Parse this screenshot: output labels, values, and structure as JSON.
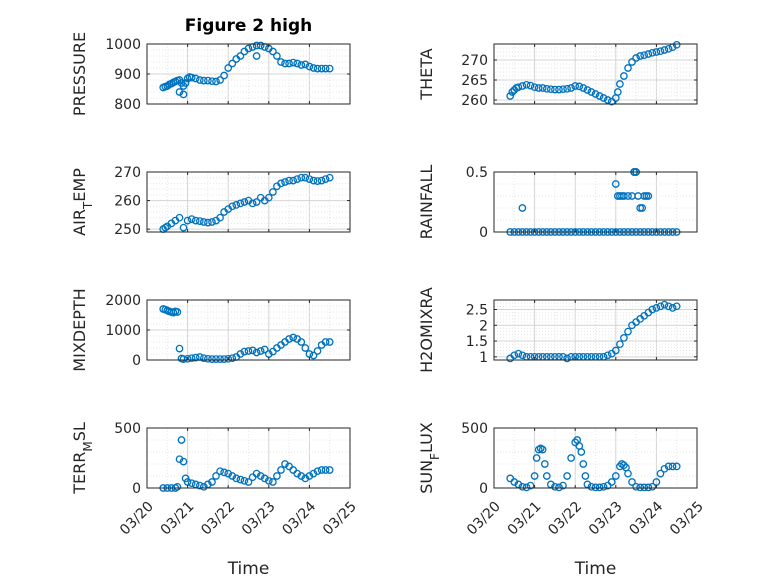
{
  "figure": {
    "title": "Figure 2 high",
    "xlabel": "Time",
    "xtick_labels": [
      "03/20",
      "03/21",
      "03/22",
      "03/23",
      "03/24",
      "03/25"
    ],
    "marker_color": "#0072BD"
  },
  "chart_data": [
    {
      "type": "scatter",
      "title": "Figure 2 high",
      "ylabel": "PRESSURE",
      "xlabel": "",
      "xlim": [
        0,
        5
      ],
      "ylim": [
        800,
        1000
      ],
      "yticks": [
        800,
        900,
        1000
      ],
      "ytick_labels": [
        "800",
        "900",
        "1000"
      ],
      "grid": true,
      "x": [
        0.4,
        0.45,
        0.5,
        0.55,
        0.6,
        0.65,
        0.7,
        0.75,
        0.8,
        0.85,
        0.9,
        0.95,
        1.0,
        1.05,
        1.1,
        1.2,
        1.3,
        1.4,
        1.5,
        1.6,
        1.7,
        1.8,
        1.9,
        2.0,
        2.1,
        2.2,
        2.3,
        2.4,
        2.5,
        2.6,
        2.7,
        2.8,
        2.9,
        3.0,
        3.1,
        3.2,
        3.3,
        3.4,
        3.5,
        3.6,
        3.7,
        3.8,
        3.9,
        4.0,
        4.1,
        4.2,
        4.3,
        4.4,
        4.5,
        0.8,
        0.9,
        2.7
      ],
      "y": [
        855,
        858,
        860,
        865,
        868,
        872,
        875,
        878,
        880,
        870,
        860,
        870,
        885,
        890,
        888,
        885,
        880,
        878,
        878,
        876,
        875,
        880,
        895,
        920,
        935,
        950,
        960,
        975,
        985,
        990,
        995,
        995,
        990,
        985,
        975,
        960,
        940,
        935,
        935,
        938,
        935,
        930,
        932,
        925,
        920,
        918,
        918,
        918,
        918,
        840,
        832,
        960
      ]
    },
    {
      "type": "scatter",
      "ylabel": "THETA",
      "xlabel": "",
      "xlim": [
        0,
        5
      ],
      "ylim": [
        259,
        274
      ],
      "yticks": [
        260,
        265,
        270
      ],
      "ytick_labels": [
        "260",
        "265",
        "270"
      ],
      "grid": true,
      "x": [
        0.4,
        0.45,
        0.5,
        0.55,
        0.6,
        0.7,
        0.8,
        0.9,
        1.0,
        1.1,
        1.2,
        1.3,
        1.4,
        1.5,
        1.6,
        1.7,
        1.8,
        1.9,
        2.0,
        2.1,
        2.2,
        2.3,
        2.4,
        2.5,
        2.6,
        2.7,
        2.8,
        2.9,
        3.0,
        3.05,
        3.1,
        3.2,
        3.3,
        3.4,
        3.5,
        3.6,
        3.7,
        3.8,
        3.9,
        4.0,
        4.1,
        4.2,
        4.3,
        4.4,
        4.5
      ],
      "y": [
        261,
        262,
        262.5,
        263,
        263.2,
        263.5,
        263.8,
        263.6,
        263.2,
        263.0,
        263.0,
        262.8,
        262.7,
        262.6,
        262.6,
        262.7,
        262.8,
        263.0,
        263.5,
        263.4,
        263.0,
        262.5,
        262.0,
        261.5,
        261.0,
        260.5,
        260.0,
        259.6,
        260.5,
        262,
        264,
        266,
        268,
        269.5,
        270.5,
        271,
        271.2,
        271.5,
        271.8,
        272,
        272.2,
        272.5,
        272.8,
        273.2,
        273.8
      ]
    },
    {
      "type": "scatter",
      "ylabel": "AIR_TEMP",
      "xlabel": "",
      "xlim": [
        0,
        5
      ],
      "ylim": [
        249,
        270
      ],
      "yticks": [
        250,
        260,
        270
      ],
      "ytick_labels": [
        "250",
        "260",
        "270"
      ],
      "grid": true,
      "x": [
        0.4,
        0.45,
        0.5,
        0.6,
        0.7,
        0.8,
        0.9,
        1.0,
        1.1,
        1.2,
        1.3,
        1.4,
        1.5,
        1.6,
        1.7,
        1.8,
        1.9,
        2.0,
        2.1,
        2.2,
        2.3,
        2.4,
        2.5,
        2.6,
        2.7,
        2.8,
        2.9,
        3.0,
        3.1,
        3.2,
        3.3,
        3.4,
        3.5,
        3.6,
        3.7,
        3.8,
        3.9,
        4.0,
        4.1,
        4.2,
        4.3,
        4.4,
        4.5
      ],
      "y": [
        250,
        250.5,
        251,
        252,
        253,
        254,
        250.5,
        253,
        253.5,
        253,
        252.8,
        252.5,
        252.3,
        252.5,
        253,
        254,
        256,
        257,
        258,
        258.5,
        259,
        259.5,
        260,
        259,
        259.5,
        261,
        260,
        261,
        263,
        265,
        266,
        266.5,
        267,
        267,
        267.5,
        268,
        268,
        267.5,
        267,
        266.8,
        267,
        267.5,
        268
      ]
    },
    {
      "type": "scatter",
      "ylabel": "RAINFALL",
      "xlabel": "",
      "xlim": [
        0,
        5
      ],
      "ylim": [
        0,
        0.5
      ],
      "yticks": [
        0,
        0.5
      ],
      "ytick_labels": [
        "0",
        "0.5"
      ],
      "grid": true,
      "x": [
        0.4,
        0.5,
        0.6,
        0.7,
        0.8,
        0.9,
        1.0,
        1.1,
        1.2,
        1.3,
        1.4,
        1.5,
        1.6,
        1.7,
        1.8,
        1.9,
        2.0,
        2.1,
        2.2,
        2.3,
        2.4,
        2.5,
        2.6,
        2.7,
        2.8,
        2.9,
        3.0,
        3.1,
        3.2,
        3.3,
        3.4,
        3.5,
        3.6,
        3.7,
        3.8,
        3.9,
        4.0,
        4.1,
        4.2,
        4.3,
        4.4,
        4.5,
        0.7,
        3.0,
        3.05,
        3.1,
        3.15,
        3.2,
        3.3,
        3.4,
        3.45,
        3.5,
        3.55,
        3.6,
        3.65,
        3.7,
        3.75,
        3.8,
        3.45,
        3.5
      ],
      "y": [
        0,
        0,
        0,
        0,
        0,
        0,
        0,
        0,
        0,
        0,
        0,
        0,
        0,
        0,
        0,
        0,
        0,
        0,
        0,
        0,
        0,
        0,
        0,
        0,
        0,
        0,
        0,
        0,
        0,
        0,
        0,
        0,
        0,
        0,
        0,
        0,
        0,
        0,
        0,
        0,
        0,
        0,
        0.2,
        0.4,
        0.3,
        0.3,
        0.3,
        0.3,
        0.3,
        0.3,
        0.5,
        0.5,
        0.3,
        0.2,
        0.2,
        0.3,
        0.3,
        0.3,
        0.5,
        0.5
      ]
    },
    {
      "type": "scatter",
      "ylabel": "MIXDEPTH",
      "xlabel": "",
      "xlim": [
        0,
        5
      ],
      "ylim": [
        0,
        2000
      ],
      "yticks": [
        0,
        1000,
        2000
      ],
      "ytick_labels": [
        "0",
        "1000",
        "2000"
      ],
      "grid": true,
      "x": [
        0.4,
        0.45,
        0.5,
        0.55,
        0.6,
        0.65,
        0.7,
        0.75,
        0.8,
        0.85,
        0.9,
        1.0,
        1.1,
        1.2,
        1.3,
        1.4,
        1.5,
        1.6,
        1.7,
        1.8,
        1.9,
        2.0,
        2.1,
        2.2,
        2.3,
        2.4,
        2.5,
        2.6,
        2.7,
        2.8,
        2.9,
        3.0,
        3.1,
        3.2,
        3.3,
        3.4,
        3.5,
        3.6,
        3.7,
        3.8,
        3.9,
        4.0,
        4.1,
        4.2,
        4.3,
        4.4,
        4.5
      ],
      "y": [
        1700,
        1680,
        1650,
        1620,
        1600,
        1580,
        1620,
        1600,
        380,
        50,
        30,
        40,
        60,
        80,
        100,
        60,
        40,
        30,
        30,
        30,
        30,
        40,
        60,
        100,
        200,
        280,
        300,
        320,
        250,
        300,
        350,
        200,
        280,
        400,
        500,
        600,
        700,
        750,
        700,
        600,
        400,
        200,
        150,
        300,
        500,
        600,
        600
      ]
    },
    {
      "type": "scatter",
      "ylabel": "H2OMIXRA",
      "xlabel": "",
      "xlim": [
        0,
        5
      ],
      "ylim": [
        0.9,
        2.8
      ],
      "yticks": [
        1,
        1.5,
        2,
        2.5
      ],
      "ytick_labels": [
        "1",
        "1.5",
        "2",
        "2.5"
      ],
      "grid": true,
      "x": [
        0.4,
        0.5,
        0.6,
        0.7,
        0.8,
        0.9,
        1.0,
        1.1,
        1.2,
        1.3,
        1.4,
        1.5,
        1.6,
        1.7,
        1.8,
        1.9,
        2.0,
        2.1,
        2.2,
        2.3,
        2.4,
        2.5,
        2.6,
        2.7,
        2.8,
        2.9,
        3.0,
        3.1,
        3.2,
        3.3,
        3.4,
        3.5,
        3.6,
        3.7,
        3.8,
        3.9,
        4.0,
        4.1,
        4.2,
        4.3,
        4.4,
        4.5
      ],
      "y": [
        0.95,
        1.05,
        1.1,
        1.05,
        1.0,
        1.0,
        1.0,
        1.0,
        1.0,
        1.0,
        1.0,
        1.0,
        1.0,
        1.0,
        0.95,
        1.0,
        1.0,
        1.0,
        1.0,
        1.0,
        1.0,
        1.0,
        1.0,
        1.0,
        1.05,
        1.1,
        1.2,
        1.4,
        1.6,
        1.8,
        2.0,
        2.1,
        2.2,
        2.3,
        2.4,
        2.5,
        2.55,
        2.6,
        2.65,
        2.6,
        2.55,
        2.6
      ]
    },
    {
      "type": "scatter",
      "ylabel": "TERR_MSL",
      "xlabel": "",
      "xlim": [
        0,
        5
      ],
      "ylim": [
        0,
        500
      ],
      "yticks": [
        0,
        500
      ],
      "ytick_labels": [
        "0",
        "500"
      ],
      "grid": true,
      "x": [
        0.4,
        0.5,
        0.6,
        0.7,
        0.75,
        0.8,
        0.85,
        0.9,
        0.95,
        1.0,
        1.1,
        1.2,
        1.3,
        1.4,
        1.5,
        1.6,
        1.7,
        1.8,
        1.9,
        2.0,
        2.1,
        2.2,
        2.3,
        2.4,
        2.5,
        2.6,
        2.7,
        2.8,
        2.9,
        3.0,
        3.1,
        3.2,
        3.3,
        3.4,
        3.5,
        3.6,
        3.7,
        3.8,
        3.9,
        4.0,
        4.1,
        4.2,
        4.3,
        4.4,
        4.5
      ],
      "y": [
        0,
        0,
        0,
        0,
        10,
        240,
        400,
        220,
        80,
        50,
        40,
        30,
        20,
        10,
        30,
        50,
        100,
        140,
        130,
        120,
        100,
        80,
        70,
        60,
        50,
        90,
        120,
        100,
        80,
        60,
        50,
        100,
        150,
        200,
        180,
        150,
        120,
        100,
        80,
        100,
        120,
        140,
        150,
        150,
        150
      ]
    },
    {
      "type": "scatter",
      "ylabel": "SUN_FLUX",
      "xlabel": "",
      "xlim": [
        0,
        5
      ],
      "ylim": [
        0,
        500
      ],
      "yticks": [
        0,
        500
      ],
      "ytick_labels": [
        "0",
        "500"
      ],
      "grid": true,
      "x": [
        0.4,
        0.5,
        0.6,
        0.7,
        0.8,
        0.9,
        1.0,
        1.05,
        1.1,
        1.15,
        1.2,
        1.25,
        1.3,
        1.4,
        1.5,
        1.6,
        1.7,
        1.8,
        1.9,
        2.0,
        2.05,
        2.1,
        2.15,
        2.2,
        2.25,
        2.3,
        2.4,
        2.5,
        2.6,
        2.7,
        2.8,
        2.9,
        3.0,
        3.1,
        3.15,
        3.2,
        3.25,
        3.3,
        3.4,
        3.5,
        3.6,
        3.7,
        3.8,
        3.9,
        4.0,
        4.1,
        4.2,
        4.3,
        4.4,
        4.5
      ],
      "y": [
        80,
        50,
        30,
        10,
        5,
        20,
        100,
        250,
        320,
        330,
        320,
        200,
        100,
        30,
        10,
        5,
        20,
        100,
        250,
        380,
        400,
        350,
        300,
        200,
        100,
        30,
        10,
        5,
        5,
        10,
        20,
        50,
        100,
        180,
        200,
        190,
        170,
        120,
        50,
        10,
        5,
        5,
        5,
        10,
        50,
        120,
        160,
        180,
        180,
        180
      ]
    }
  ]
}
